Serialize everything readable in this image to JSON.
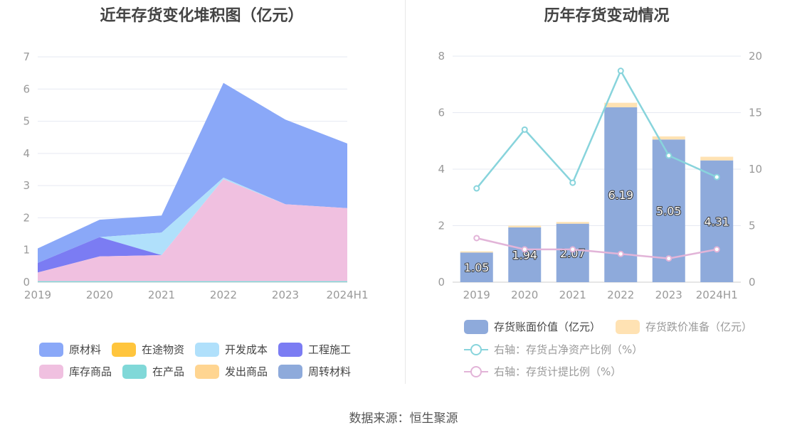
{
  "left_chart": {
    "title": "近年存货变化堆积图（亿元）",
    "colors": {
      "原材料": "#8aa8f8",
      "在途物资": "#ffc53d",
      "开发成本": "#b0e0fb",
      "工程施工": "#7b7cf3",
      "库存商品": "#f0c0e0",
      "在产品": "#80d8d8",
      "发出商品": "#ffd591",
      "周转材料": "#8eaadb"
    },
    "legend": [
      "原材料",
      "在途物资",
      "开发成本",
      "工程施工",
      "库存商品",
      "在产品",
      "发出商品",
      "周转材料"
    ]
  },
  "right_chart": {
    "title": "历年存货变动情况",
    "colors": {
      "book_value": "#8eaadb",
      "writedown": "#ffe2b3",
      "ratio_net_assets": "#88d4dc",
      "provision_ratio": "#e2b4d8"
    },
    "legend": {
      "book_value": "存货账面价值（亿元）",
      "writedown": "存货跌价准备（亿元）",
      "ratio_net_assets": "右轴：存货占净资产比例（%）",
      "provision_ratio": "右轴：存货计提比例（%）"
    }
  },
  "source": "数据来源：恒生聚源",
  "chart_data": [
    {
      "type": "area",
      "stacked": true,
      "title": "近年存货变化堆积图（亿元）",
      "categories": [
        "2019",
        "2020",
        "2021",
        "2022",
        "2023",
        "2024H1"
      ],
      "ylim": [
        0,
        7
      ],
      "yticks": [
        0,
        1,
        2,
        3,
        4,
        5,
        6,
        7
      ],
      "grid": true,
      "legend_position": "bottom",
      "series": [
        {
          "name": "在产品",
          "values": [
            0.03,
            0.03,
            0.03,
            0.03,
            0.03,
            0.03
          ]
        },
        {
          "name": "库存商品",
          "values": [
            0.27,
            0.77,
            0.81,
            3.17,
            2.39,
            2.27
          ]
        },
        {
          "name": "工程施工",
          "values": [
            0.3,
            0.6,
            0.0,
            0.0,
            0.0,
            0.0
          ]
        },
        {
          "name": "开发成本",
          "values": [
            0.0,
            0.0,
            0.7,
            0.05,
            0.0,
            0.0
          ]
        },
        {
          "name": "原材料",
          "values": [
            0.45,
            0.54,
            0.53,
            2.94,
            2.63,
            2.01
          ]
        },
        {
          "name": "在途物资",
          "values": [
            0,
            0,
            0,
            0,
            0,
            0
          ]
        },
        {
          "name": "发出商品",
          "values": [
            0,
            0,
            0,
            0,
            0,
            0
          ]
        },
        {
          "name": "周转材料",
          "values": [
            0,
            0,
            0,
            0,
            0,
            0
          ]
        }
      ]
    },
    {
      "type": "bar",
      "stacked": true,
      "title": "历年存货变动情况",
      "categories": [
        "2019",
        "2020",
        "2021",
        "2022",
        "2023",
        "2024H1"
      ],
      "ylim": [
        0,
        8
      ],
      "yticks": [
        0,
        2,
        4,
        6,
        8
      ],
      "y2lim": [
        0,
        20
      ],
      "y2ticks": [
        0,
        5,
        10,
        15,
        20
      ],
      "grid": true,
      "legend_position": "bottom",
      "series": [
        {
          "name": "存货账面价值（亿元）",
          "axis": "left",
          "values": [
            1.05,
            1.94,
            2.07,
            6.19,
            5.05,
            4.31
          ],
          "labels": [
            "1.05",
            "1.94",
            "2.07",
            "6.19",
            "5.05",
            "4.31"
          ]
        },
        {
          "name": "存货跌价准备（亿元）",
          "axis": "left",
          "values": [
            0.04,
            0.06,
            0.06,
            0.16,
            0.11,
            0.13
          ]
        },
        {
          "name": "右轴：存货占净资产比例（%）",
          "axis": "right",
          "type": "line",
          "values": [
            8.3,
            13.5,
            8.8,
            18.7,
            11.2,
            9.3
          ]
        },
        {
          "name": "右轴：存货计提比例（%）",
          "axis": "right",
          "type": "line",
          "values": [
            3.9,
            2.9,
            2.9,
            2.5,
            2.1,
            2.9
          ]
        }
      ]
    }
  ]
}
